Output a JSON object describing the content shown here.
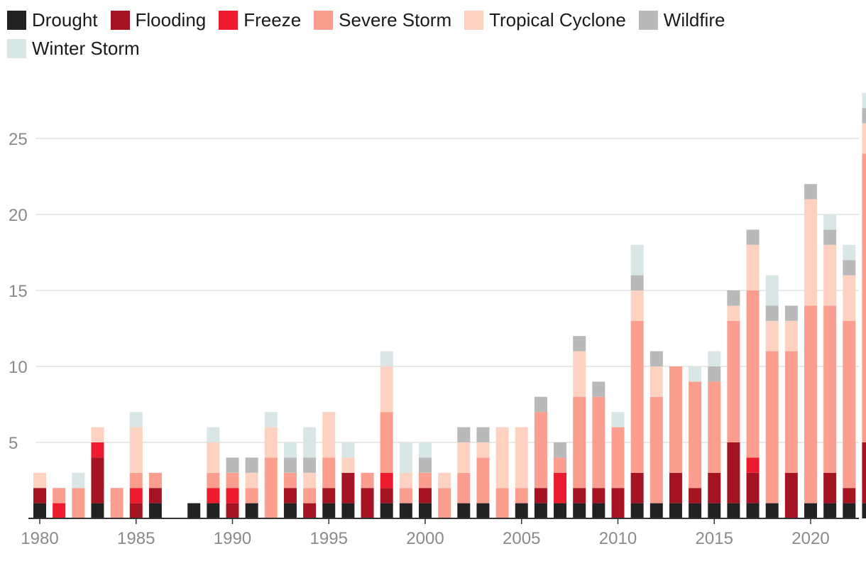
{
  "chart_data": {
    "type": "bar",
    "stacked": true,
    "title": "",
    "xlabel": "",
    "ylabel": "",
    "ylim": [
      0,
      28
    ],
    "yticks": [
      5,
      10,
      15,
      20,
      25
    ],
    "xticks": [
      1980,
      1985,
      1990,
      1995,
      2000,
      2005,
      2010,
      2015,
      2020
    ],
    "grid": true,
    "legend_position": "top-left",
    "categories": [
      1980,
      1981,
      1982,
      1983,
      1984,
      1985,
      1986,
      1987,
      1988,
      1989,
      1990,
      1991,
      1992,
      1993,
      1994,
      1995,
      1996,
      1997,
      1998,
      1999,
      2000,
      2001,
      2002,
      2003,
      2004,
      2005,
      2006,
      2007,
      2008,
      2009,
      2010,
      2011,
      2012,
      2013,
      2014,
      2015,
      2016,
      2017,
      2018,
      2019,
      2020,
      2021,
      2022,
      2023
    ],
    "series": [
      {
        "name": "Drought",
        "color": "#222222",
        "values": [
          1,
          0,
          0,
          1,
          0,
          0,
          1,
          0,
          1,
          1,
          0,
          1,
          0,
          1,
          0,
          1,
          1,
          0,
          1,
          1,
          1,
          0,
          1,
          1,
          0,
          1,
          1,
          1,
          1,
          1,
          0,
          1,
          1,
          1,
          1,
          1,
          1,
          1,
          1,
          0,
          1,
          1,
          1,
          1
        ]
      },
      {
        "name": "Flooding",
        "color": "#a51423",
        "values": [
          1,
          0,
          0,
          3,
          0,
          1,
          1,
          0,
          0,
          0,
          1,
          0,
          0,
          1,
          1,
          1,
          2,
          2,
          1,
          0,
          1,
          0,
          0,
          0,
          0,
          0,
          1,
          0,
          1,
          1,
          2,
          2,
          0,
          2,
          1,
          2,
          4,
          2,
          0,
          3,
          0,
          2,
          1,
          4
        ]
      },
      {
        "name": "Freeze",
        "color": "#ec1c2e",
        "values": [
          0,
          1,
          0,
          1,
          0,
          1,
          0,
          0,
          0,
          1,
          1,
          0,
          0,
          0,
          0,
          0,
          0,
          0,
          1,
          0,
          0,
          0,
          0,
          0,
          0,
          0,
          0,
          2,
          0,
          0,
          0,
          0,
          0,
          0,
          0,
          0,
          0,
          1,
          0,
          0,
          0,
          0,
          0,
          0
        ]
      },
      {
        "name": "Severe Storm",
        "color": "#fc9e8f",
        "values": [
          0,
          1,
          2,
          0,
          2,
          1,
          1,
          0,
          0,
          1,
          1,
          1,
          4,
          1,
          1,
          2,
          0,
          1,
          4,
          1,
          1,
          2,
          2,
          3,
          2,
          1,
          5,
          1,
          6,
          6,
          4,
          10,
          7,
          7,
          7,
          6,
          8,
          11,
          10,
          8,
          13,
          11,
          11,
          19
        ]
      },
      {
        "name": "Tropical Cyclone",
        "color": "#fed2c0",
        "values": [
          1,
          0,
          0,
          1,
          0,
          3,
          0,
          0,
          0,
          2,
          0,
          1,
          2,
          0,
          1,
          3,
          1,
          0,
          3,
          1,
          0,
          1,
          2,
          1,
          4,
          4,
          0,
          0,
          3,
          0,
          0,
          2,
          2,
          0,
          0,
          0,
          1,
          3,
          2,
          2,
          7,
          4,
          3,
          2
        ]
      },
      {
        "name": "Wildfire",
        "color": "#b9b9b9",
        "values": [
          0,
          0,
          0,
          0,
          0,
          0,
          0,
          0,
          0,
          0,
          1,
          1,
          0,
          1,
          1,
          0,
          0,
          0,
          0,
          0,
          1,
          0,
          1,
          1,
          0,
          0,
          1,
          1,
          1,
          1,
          0,
          1,
          1,
          0,
          0,
          1,
          1,
          1,
          1,
          1,
          1,
          1,
          1,
          1
        ]
      },
      {
        "name": "Winter Storm",
        "color": "#d8e6e6",
        "values": [
          0,
          0,
          1,
          0,
          0,
          1,
          0,
          0,
          0,
          1,
          0,
          0,
          1,
          1,
          2,
          0,
          1,
          0,
          1,
          2,
          1,
          0,
          0,
          0,
          0,
          0,
          0,
          0,
          0,
          0,
          1,
          2,
          0,
          0,
          1,
          1,
          0,
          0,
          2,
          0,
          0,
          1,
          1,
          1
        ]
      }
    ]
  }
}
